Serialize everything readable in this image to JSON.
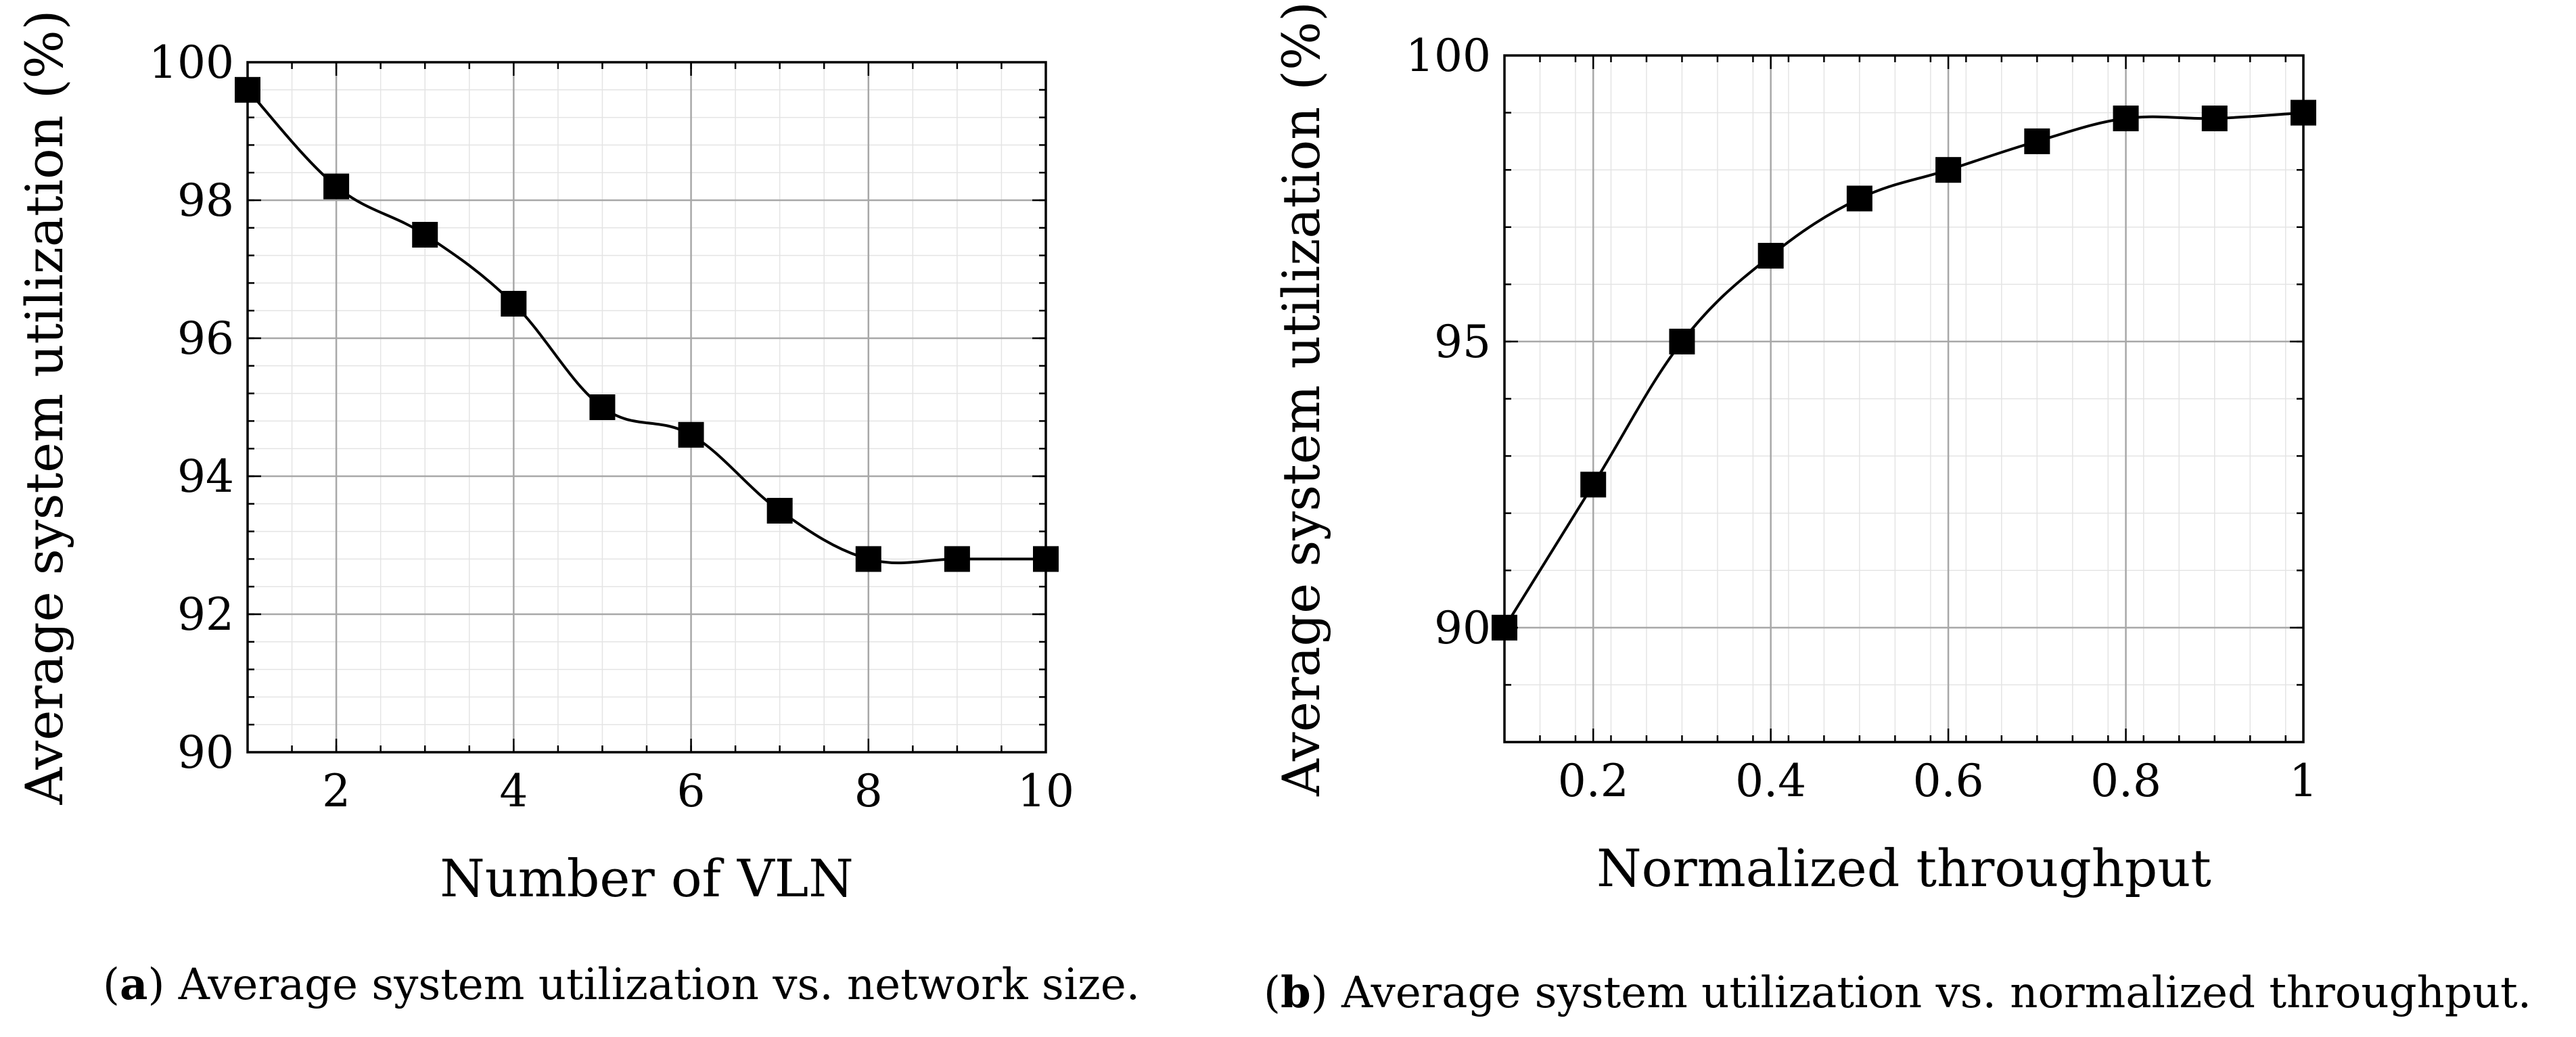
{
  "chart_data": [
    {
      "id": "a",
      "type": "line",
      "xlabel": "Number of VLN",
      "ylabel": "Average system utilization (%)",
      "xlim": [
        1,
        10
      ],
      "ylim": [
        90,
        100
      ],
      "xticks": [
        2,
        4,
        6,
        8,
        10
      ],
      "yticks": [
        90,
        92,
        94,
        96,
        98,
        100
      ],
      "x_minor_step": 0.5,
      "y_minor_step": 0.4,
      "grid": true,
      "marker": "square",
      "series": [
        {
          "name": "utilization",
          "x": [
            1,
            2,
            3,
            4,
            5,
            6,
            7,
            8,
            9,
            10
          ],
          "y": [
            99.6,
            98.2,
            97.5,
            96.5,
            95.0,
            94.6,
            93.5,
            92.8,
            92.8,
            92.8
          ]
        }
      ],
      "caption_tag": "a",
      "caption_text": "Average system utilization vs. network size."
    },
    {
      "id": "b",
      "type": "line",
      "xlabel": "Normalized throughput",
      "ylabel": "Average system utilization (%)",
      "xlim": [
        0.1,
        1.0
      ],
      "ylim": [
        88,
        100
      ],
      "xticks": [
        0.2,
        0.4,
        0.6,
        0.8,
        1
      ],
      "xtick_labels": [
        "0.2",
        "0.4",
        "0.6",
        "0.8",
        "1"
      ],
      "yticks": [
        90,
        95,
        100
      ],
      "x_minor_step": 0.04,
      "y_minor_step": 1,
      "grid": true,
      "marker": "square",
      "series": [
        {
          "name": "utilization",
          "x": [
            0.1,
            0.2,
            0.3,
            0.4,
            0.5,
            0.6,
            0.7,
            0.8,
            0.9,
            1.0
          ],
          "y": [
            90.0,
            92.5,
            95.0,
            96.5,
            97.5,
            98.0,
            98.5,
            98.9,
            98.9,
            99.0
          ]
        }
      ],
      "caption_tag": "b",
      "caption_text": "Average system utilization vs. normalized throughput."
    }
  ]
}
